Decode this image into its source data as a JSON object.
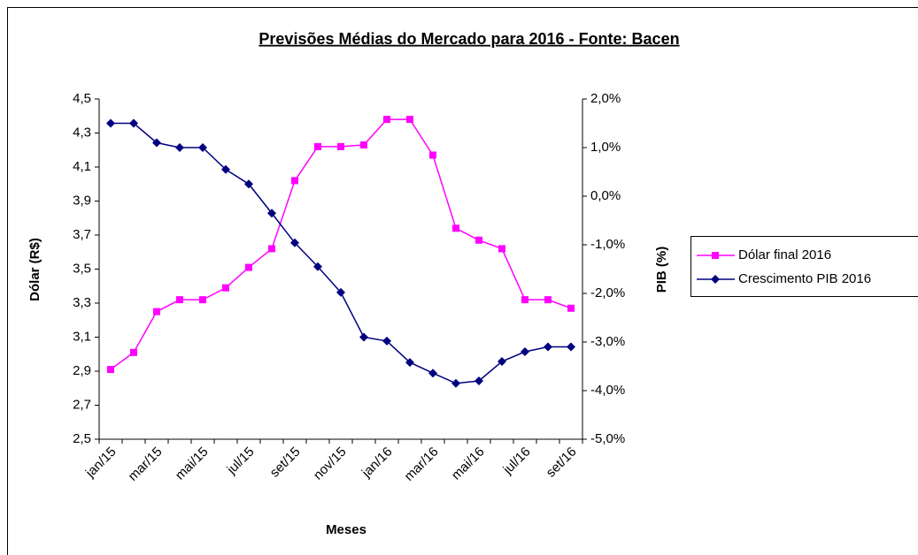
{
  "chart_data": {
    "type": "line",
    "title": "Previsões Médias do Mercado para 2016 - Fonte: Bacen",
    "x_label": "Meses",
    "y_label": "Dólar (R$)",
    "y2_label": "PIB (%)",
    "categories": [
      "jan/15",
      null,
      "mar/15",
      null,
      "mai/15",
      null,
      "jul/15",
      null,
      "set/15",
      null,
      "nov/15",
      null,
      "jan/16",
      null,
      "mar/16",
      null,
      "mai/16",
      null,
      "jul/16",
      null,
      "set/16"
    ],
    "series": [
      {
        "name": "Dólar final 2016",
        "color": "#ff00ff",
        "marker": "square",
        "axis": "y",
        "values": [
          2.91,
          3.01,
          3.25,
          3.32,
          3.32,
          3.39,
          3.51,
          3.62,
          4.02,
          4.22,
          4.22,
          4.23,
          4.38,
          4.38,
          4.17,
          3.74,
          3.67,
          3.62,
          3.32,
          3.32,
          3.27
        ]
      },
      {
        "name": "Crescimento PIB 2016",
        "color": "#000080",
        "marker": "diamond",
        "axis": "y2",
        "values": [
          1.5,
          1.5,
          1.1,
          1.0,
          1.0,
          0.55,
          0.25,
          -0.35,
          -0.96,
          -1.45,
          -1.98,
          -2.9,
          -2.98,
          -3.42,
          -3.64,
          -3.85,
          -3.8,
          -3.4,
          -3.2,
          -3.1,
          -3.1
        ]
      }
    ],
    "ylim": [
      2.5,
      4.5
    ],
    "yticks": [
      {
        "value": 2.5,
        "label": "2,5"
      },
      {
        "value": 2.7,
        "label": "2,7"
      },
      {
        "value": 2.9,
        "label": "2,9"
      },
      {
        "value": 3.1,
        "label": "3,1"
      },
      {
        "value": 3.3,
        "label": "3,3"
      },
      {
        "value": 3.5,
        "label": "3,5"
      },
      {
        "value": 3.7,
        "label": "3,7"
      },
      {
        "value": 3.9,
        "label": "3,9"
      },
      {
        "value": 4.1,
        "label": "4,1"
      },
      {
        "value": 4.3,
        "label": "4,3"
      },
      {
        "value": 4.5,
        "label": "4,5"
      }
    ],
    "y2lim": [
      -5,
      2
    ],
    "y2ticks": [
      {
        "value": -5,
        "label": "-5,0%"
      },
      {
        "value": -4,
        "label": "-4,0%"
      },
      {
        "value": -3,
        "label": "-3,0%"
      },
      {
        "value": -2,
        "label": "-2,0%"
      },
      {
        "value": -1,
        "label": "-1,0%"
      },
      {
        "value": 0,
        "label": "0,0%"
      },
      {
        "value": 1,
        "label": "1,0%"
      },
      {
        "value": 2,
        "label": "2,0%"
      }
    ],
    "grid": false,
    "legend": "right"
  }
}
